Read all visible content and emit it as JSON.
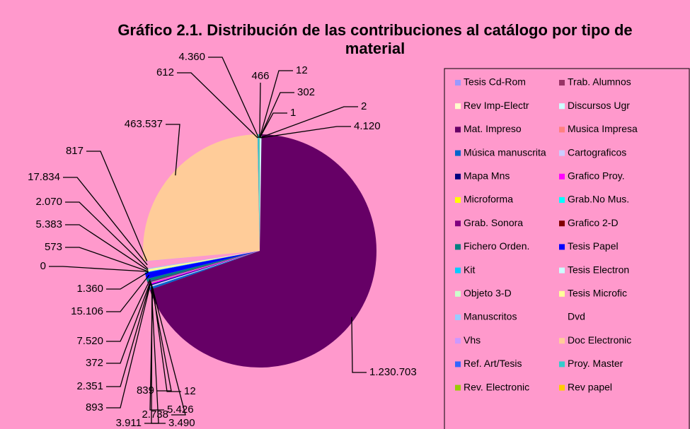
{
  "chart_data": {
    "type": "pie",
    "title": "Gráfico 2.1. Distribución de las contribuciones al catálogo por tipo de material",
    "categories": [
      "Tesis Cd-Rom",
      "Trab. Alumnos",
      "Rev Imp-Electr",
      "Discursos Ugr",
      "Mat. Impreso",
      "Musica Impresa",
      "Música manuscrita",
      "Cartograficos",
      "Mapa Mns",
      "Grafico Proy.",
      "Microforma",
      "Grab.No Mus.",
      "Grab. Sonora",
      "Grafico 2-D",
      "Fichero Orden.",
      "Tesis Papel",
      "Kit",
      "Tesis Electron",
      "Objeto 3-D",
      "Tesis Microfic",
      "Manuscritos",
      "Dvd",
      "Vhs",
      "Doc Electronic",
      "Ref. Art/Tesis",
      "Proy. Master",
      "Rev. Electronic",
      "Rev papel"
    ],
    "values": [
      302,
      1,
      2,
      4120,
      1230703,
      12,
      5426,
      3490,
      2738,
      3911,
      839,
      893,
      2351,
      372,
      7520,
      15106,
      1360,
      0,
      573,
      5383,
      2070,
      17834,
      817,
      463537,
      612,
      4360,
      466,
      12
    ],
    "value_labels": [
      "302",
      "1",
      "2",
      "4.120",
      "1.230.703",
      "12",
      "5.426",
      "3.490",
      "2.738",
      "3.911",
      "839",
      "893",
      "2.351",
      "372",
      "7.520",
      "15.106",
      "1.360",
      "0",
      "573",
      "5.383",
      "2.070",
      "17.834",
      "817",
      "463.537",
      "612",
      "4.360",
      "466",
      "12"
    ],
    "colors": [
      "#9999ff",
      "#993366",
      "#ffffcc",
      "#ccffff",
      "#660066",
      "#ff8080",
      "#0066cc",
      "#ccccff",
      "#000080",
      "#ff00ff",
      "#ffff00",
      "#00ffff",
      "#800080",
      "#800000",
      "#008080",
      "#0000ff",
      "#00ccff",
      "#ccffff",
      "#ccffcc",
      "#ffff99",
      "#99ccff",
      "#ff99cc",
      "#cc99ff",
      "#ffcc99",
      "#3366ff",
      "#33cccc",
      "#99cc00",
      "#ffcc00"
    ],
    "legend": "right"
  }
}
